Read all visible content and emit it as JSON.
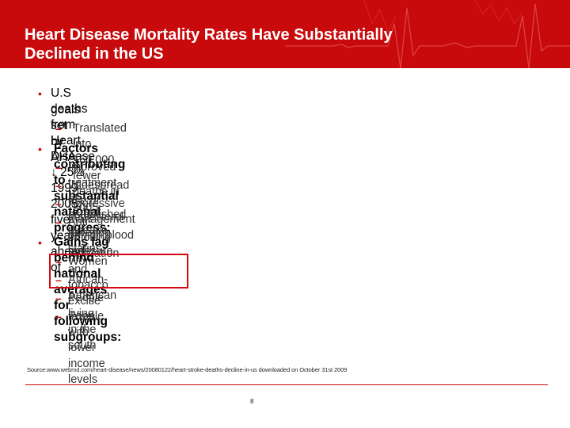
{
  "slide": {
    "title_line1": "Heart Disease Mortality Rates Have Substantially",
    "title_line2": "Declined in the US",
    "bullets": [
      {
        "line1": "U.S deaths from Heart Disease ↓ 25% 1999-2005; five years ahead of",
        "line2": "goals set by AHA",
        "subitems": [
          "Translated into 160,000 fewer deaths in 2005"
        ]
      },
      {
        "line1": "Factors contributing to substantial national progress:",
        "subitems": [
          "Improved treatment of established disease",
          "Widespread use of cholesterol-lowering statins",
          "Aggressive management of high blood pressure",
          "Anti-smoking legislation and tobacco excise taxes"
        ]
      },
      {
        "line1": "Gains lag behind national averages for following subgroups:",
        "subitems": [
          "Women",
          "African-American",
          "People living in the south",
          "People with lower income levels"
        ]
      }
    ],
    "bullet_symbol": "•",
    "dash_symbol": "–",
    "source": "Source:www.webmd.com/heart-disease/news/20080122/heart-stroke-deaths-decline-in-us downloaded on October 31st 2009",
    "page_number": "8"
  },
  "colors": {
    "accent": "#c80a0c",
    "highlight": "#d40a10"
  }
}
